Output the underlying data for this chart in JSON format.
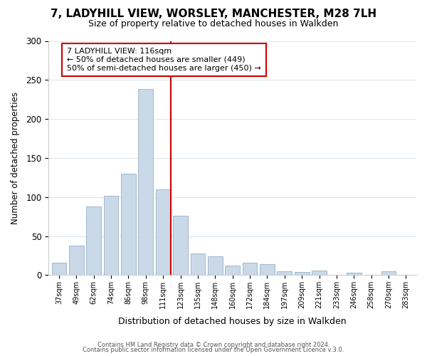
{
  "title": "7, LADYHILL VIEW, WORSLEY, MANCHESTER, M28 7LH",
  "subtitle": "Size of property relative to detached houses in Walkden",
  "xlabel": "Distribution of detached houses by size in Walkden",
  "ylabel": "Number of detached properties",
  "bar_labels": [
    "37sqm",
    "49sqm",
    "62sqm",
    "74sqm",
    "86sqm",
    "98sqm",
    "111sqm",
    "123sqm",
    "135sqm",
    "148sqm",
    "160sqm",
    "172sqm",
    "184sqm",
    "197sqm",
    "209sqm",
    "221sqm",
    "233sqm",
    "246sqm",
    "258sqm",
    "270sqm",
    "283sqm"
  ],
  "bar_values": [
    16,
    38,
    88,
    102,
    130,
    238,
    110,
    76,
    28,
    24,
    12,
    16,
    14,
    5,
    4,
    6,
    0,
    3,
    0,
    5,
    0
  ],
  "bar_color": "#c9d9e8",
  "bar_edge_color": "#a0b8cc",
  "vline_color": "#cc0000",
  "vline_index": 6,
  "ylim": [
    0,
    300
  ],
  "yticks": [
    0,
    50,
    100,
    150,
    200,
    250,
    300
  ],
  "annotation_title": "7 LADYHILL VIEW: 116sqm",
  "annotation_line1": "← 50% of detached houses are smaller (449)",
  "annotation_line2": "50% of semi-detached houses are larger (450) →",
  "footer_line1": "Contains HM Land Registry data © Crown copyright and database right 2024.",
  "footer_line2": "Contains public sector information licensed under the Open Government Licence v.3.0.",
  "background_color": "#ffffff",
  "grid_color": "#dde8f0"
}
